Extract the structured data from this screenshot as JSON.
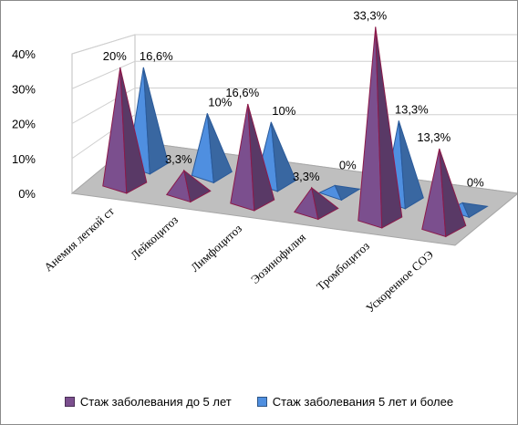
{
  "chart_data": {
    "type": "bar",
    "subtype": "3d-pyramid",
    "title": "",
    "xlabel": "",
    "ylabel": "",
    "ylim": [
      0,
      40
    ],
    "y_tick_labels": [
      "0%",
      "10%",
      "20%",
      "30%",
      "40%"
    ],
    "categories": [
      "Анемия легкой ст",
      "Лейкоцитоз",
      "Лимфоцитоз",
      "Эозинофилия",
      "Тромбоцитоз",
      "Ускоренное СОЭ"
    ],
    "series": [
      {
        "name": "Стаж заболевания до 5 лет",
        "values": [
          20,
          3.3,
          16.6,
          3.3,
          33.3,
          13.3
        ],
        "labels": [
          "20%",
          "3,3%",
          "16,6%",
          "3,3%",
          "33,3%",
          "13,3%"
        ],
        "color": "#7b4f8e"
      },
      {
        "name": "Стаж заболевания 5 лет и более",
        "values": [
          16.6,
          10,
          10,
          0,
          13.3,
          0
        ],
        "labels": [
          "16,6%",
          "10%",
          "10%",
          "0%",
          "13,3%",
          "0%"
        ],
        "color": "#4f8fe0"
      }
    ],
    "grid": true,
    "legend_position": "bottom"
  }
}
